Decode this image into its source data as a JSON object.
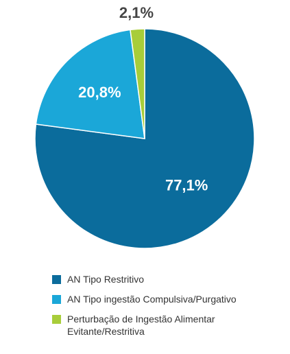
{
  "chart_data": {
    "type": "pie",
    "categories": [
      "AN Tipo Restritivo",
      "AN Tipo ingestão Compulsiva/Purgativo",
      "Perturbação de Ingestão Alimentar Evitante/Restritiva"
    ],
    "values": [
      77.1,
      20.8,
      2.1
    ],
    "value_labels": [
      "77,1%",
      "20,8%",
      "2,1%"
    ],
    "colors": [
      "#0b6c9c",
      "#1ba7d8",
      "#a8cd3a"
    ]
  }
}
